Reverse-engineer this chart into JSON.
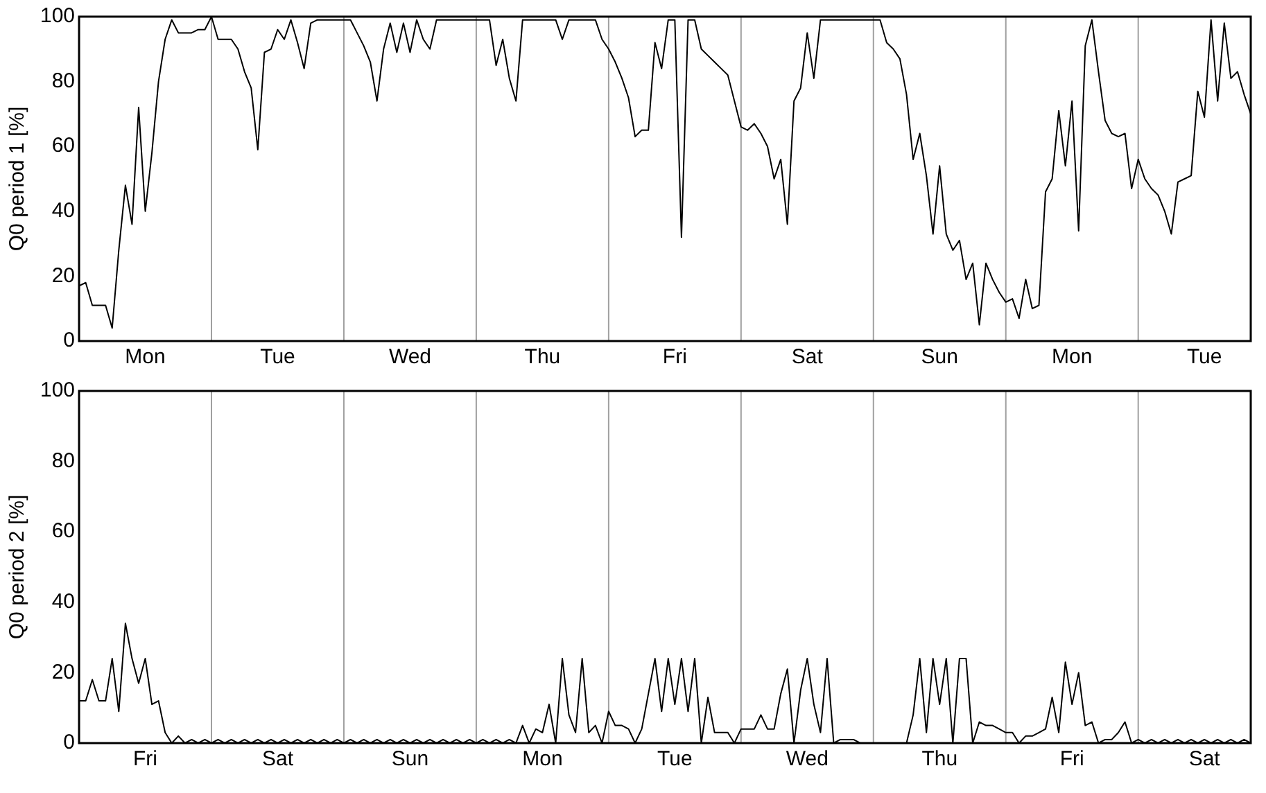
{
  "chart_data": [
    {
      "type": "line",
      "ylabel": "Q0 period 1 [%]",
      "color": "#000000",
      "categories": [
        null,
        null,
        null,
        null,
        null,
        null,
        null,
        null,
        null,
        null,
        "Mon",
        null,
        null,
        null,
        null,
        null,
        null,
        null,
        null,
        null,
        null,
        null,
        null,
        null,
        null,
        null,
        null,
        null,
        null,
        null,
        "Tue",
        null,
        null,
        null,
        null,
        null,
        null,
        null,
        null,
        null,
        null,
        null,
        null,
        null,
        null,
        null,
        null,
        null,
        null,
        null,
        "Wed",
        null,
        null,
        null,
        null,
        null,
        null,
        null,
        null,
        null,
        null,
        null,
        null,
        null,
        null,
        null,
        null,
        null,
        null,
        null,
        "Thu",
        null,
        null,
        null,
        null,
        null,
        null,
        null,
        null,
        null,
        null,
        null,
        null,
        null,
        null,
        null,
        null,
        null,
        null,
        null,
        "Fri",
        null,
        null,
        null,
        null,
        null,
        null,
        null,
        null,
        null,
        null,
        null,
        null,
        null,
        null,
        null,
        null,
        null,
        null,
        null,
        "Sat",
        null,
        null,
        null,
        null,
        null,
        null,
        null,
        null,
        null,
        null,
        null,
        null,
        null,
        null,
        null,
        null,
        null,
        null,
        null,
        "Sun",
        null,
        null,
        null,
        null,
        null,
        null,
        null,
        null,
        null,
        null,
        null,
        null,
        null,
        null,
        null,
        null,
        null,
        null,
        null,
        "Mon",
        null,
        null,
        null,
        null,
        null,
        null,
        null,
        null,
        null,
        null,
        null,
        null,
        null,
        null,
        null,
        null,
        null,
        null,
        null,
        "Tue",
        null,
        null,
        null,
        null,
        null,
        null,
        null
      ],
      "values": [
        17,
        18,
        11,
        11,
        11,
        4,
        28,
        48,
        36,
        72,
        40,
        58,
        80,
        93,
        99,
        95,
        95,
        95,
        96,
        96,
        100,
        93,
        93,
        93,
        90,
        83,
        78,
        59,
        89,
        90,
        96,
        93,
        99,
        92,
        84,
        98,
        99,
        99,
        99,
        99,
        99,
        99,
        95,
        91,
        86,
        74,
        90,
        98,
        89,
        98,
        89,
        99,
        93,
        90,
        99,
        99,
        99,
        99,
        99,
        99,
        99,
        99,
        99,
        85,
        93,
        81,
        74,
        99,
        99,
        99,
        99,
        99,
        99,
        93,
        99,
        99,
        99,
        99,
        99,
        93,
        90,
        86,
        81,
        75,
        63,
        65,
        65,
        92,
        84,
        99,
        99,
        32,
        99,
        99,
        90,
        88,
        86,
        84,
        82,
        74,
        66,
        65,
        67,
        64,
        60,
        50,
        56,
        36,
        74,
        78,
        95,
        81,
        99,
        99,
        99,
        99,
        99,
        99,
        99,
        99,
        99,
        99,
        92,
        90,
        87,
        76,
        56,
        64,
        51,
        33,
        54,
        33,
        28,
        31,
        19,
        24,
        5,
        24,
        19,
        15,
        12,
        13,
        7,
        19,
        10,
        11,
        46,
        50,
        71,
        54,
        74,
        34,
        91,
        99,
        83,
        68,
        64,
        63,
        64,
        47,
        56,
        50,
        47,
        45,
        40,
        33,
        49,
        50,
        51,
        77,
        69,
        99,
        74,
        98,
        81,
        83,
        76,
        70
      ],
      "ylim": [
        0,
        100
      ],
      "yticks": [
        0,
        20,
        40,
        60,
        80,
        100
      ]
    },
    {
      "type": "line",
      "ylabel": "Q0 period 2 [%]",
      "color": "#000000",
      "categories": [
        null,
        null,
        null,
        null,
        null,
        null,
        null,
        null,
        null,
        null,
        "Fri",
        null,
        null,
        null,
        null,
        null,
        null,
        null,
        null,
        null,
        null,
        null,
        null,
        null,
        null,
        null,
        null,
        null,
        null,
        null,
        "Sat",
        null,
        null,
        null,
        null,
        null,
        null,
        null,
        null,
        null,
        null,
        null,
        null,
        null,
        null,
        null,
        null,
        null,
        null,
        null,
        "Sun",
        null,
        null,
        null,
        null,
        null,
        null,
        null,
        null,
        null,
        null,
        null,
        null,
        null,
        null,
        null,
        null,
        null,
        null,
        null,
        "Mon",
        null,
        null,
        null,
        null,
        null,
        null,
        null,
        null,
        null,
        null,
        null,
        null,
        null,
        null,
        null,
        null,
        null,
        null,
        null,
        "Tue",
        null,
        null,
        null,
        null,
        null,
        null,
        null,
        null,
        null,
        null,
        null,
        null,
        null,
        null,
        null,
        null,
        null,
        null,
        null,
        "Wed",
        null,
        null,
        null,
        null,
        null,
        null,
        null,
        null,
        null,
        null,
        null,
        null,
        null,
        null,
        null,
        null,
        null,
        null,
        null,
        "Thu",
        null,
        null,
        null,
        null,
        null,
        null,
        null,
        null,
        null,
        null,
        null,
        null,
        null,
        null,
        null,
        null,
        null,
        null,
        null,
        "Fri",
        null,
        null,
        null,
        null,
        null,
        null,
        null,
        null,
        null,
        null,
        null,
        null,
        null,
        null,
        null,
        null,
        null,
        null,
        null,
        "Sat",
        null,
        null,
        null,
        null,
        null,
        null,
        null
      ],
      "values": [
        12,
        12,
        18,
        12,
        12,
        24,
        9,
        34,
        24,
        17,
        24,
        11,
        12,
        3,
        0,
        2,
        0,
        1,
        0,
        1,
        0,
        1,
        0,
        1,
        0,
        1,
        0,
        1,
        0,
        1,
        0,
        1,
        0,
        1,
        0,
        1,
        0,
        1,
        0,
        1,
        0,
        1,
        0,
        1,
        0,
        1,
        0,
        1,
        0,
        1,
        0,
        1,
        0,
        1,
        0,
        1,
        0,
        1,
        0,
        1,
        0,
        1,
        0,
        1,
        0,
        1,
        0,
        5,
        0,
        4,
        3,
        11,
        0,
        24,
        8,
        3,
        24,
        3,
        5,
        0,
        9,
        5,
        5,
        4,
        0,
        4,
        14,
        24,
        9,
        24,
        11,
        24,
        9,
        24,
        0,
        13,
        3,
        3,
        3,
        0,
        4,
        4,
        4,
        8,
        4,
        4,
        14,
        21,
        0,
        15,
        24,
        11,
        3,
        24,
        0,
        1,
        1,
        1,
        0,
        0,
        0,
        0,
        0,
        0,
        0,
        0,
        8,
        24,
        3,
        24,
        11,
        24,
        0,
        24,
        24,
        0,
        6,
        5,
        5,
        4,
        3,
        3,
        0,
        2,
        2,
        3,
        4,
        13,
        3,
        23,
        11,
        20,
        5,
        6,
        0,
        1,
        1,
        3,
        6,
        0,
        1,
        0,
        1,
        0,
        1,
        0,
        1,
        0,
        1,
        0,
        1,
        0,
        1,
        0,
        1,
        0,
        1,
        0
      ],
      "ylim": [
        0,
        100
      ],
      "yticks": [
        0,
        20,
        40,
        60,
        80,
        100
      ]
    }
  ]
}
